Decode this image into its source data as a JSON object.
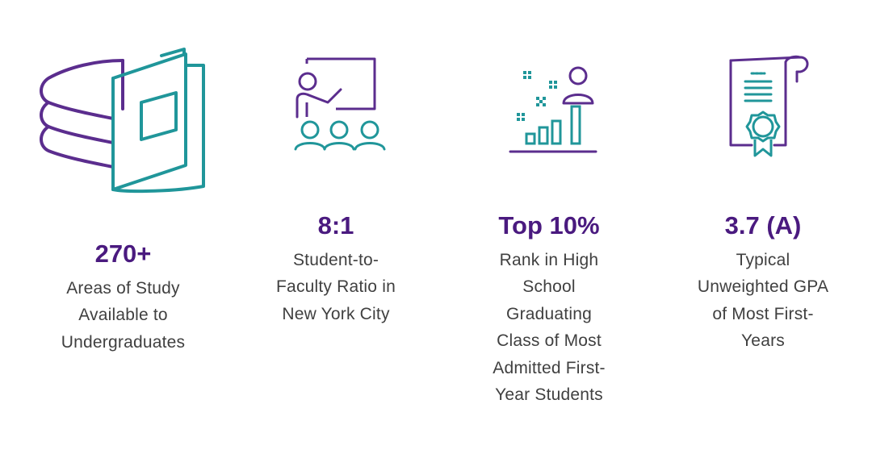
{
  "colors": {
    "purple": "#5b2d8e",
    "teal": "#20969a",
    "value_text": "#4a1a7f",
    "label_text": "#404040",
    "background": "#ffffff"
  },
  "stats": [
    {
      "icon": "books-icon",
      "value": "270+",
      "label_lines": [
        "Areas of Study",
        "Available to",
        "Undergraduates"
      ]
    },
    {
      "icon": "classroom-teacher-icon",
      "value": "8:1",
      "label_lines": [
        "Student-to-",
        "Faculty Ratio in",
        "New York City"
      ]
    },
    {
      "icon": "student-rank-chart-icon",
      "value": "Top 10%",
      "label_lines": [
        "Rank in High",
        "School",
        "Graduating",
        "Class of Most",
        "Admitted First-",
        "Year Students"
      ]
    },
    {
      "icon": "diploma-certificate-icon",
      "value": "3.7 (A)",
      "label_lines": [
        "Typical",
        "Unweighted GPA",
        "of Most First-",
        "Years"
      ]
    }
  ]
}
